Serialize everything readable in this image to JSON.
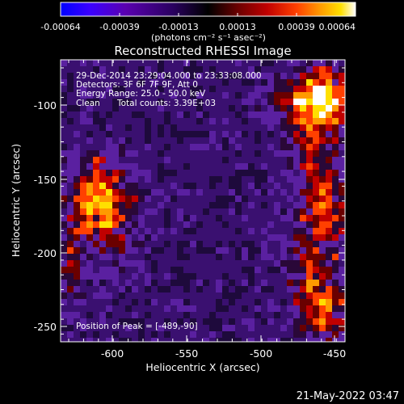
{
  "colorbar": {
    "ticks": [
      "-0.00064",
      "-0.00039",
      "-0.00013",
      "0.00013",
      "0.00039",
      "0.00064"
    ],
    "unit_label": "(photons cm⁻² s⁻¹ asec⁻²)",
    "colormap": [
      "#0000ff",
      "#3b00ff",
      "#5a00b0",
      "#2a0060",
      "#000000",
      "#6a0000",
      "#c00000",
      "#ff4000",
      "#ff9a00",
      "#ffe000",
      "#ffffff"
    ]
  },
  "image": {
    "title": "Reconstructed RHESSI Image",
    "annotations": {
      "time_range": "29-Dec-2014 23:29:04.000 to 23:33:08.000",
      "detectors": "Detectors: 3F 6F 7F 9F, Att 0",
      "energy": "Energy Range: 25.0 - 50.0 keV",
      "method": "Clean",
      "total_counts": "Total counts: 3.39E+03",
      "peak": "Position of Peak = [-489,-90]"
    },
    "x_axis": {
      "label": "Heliocentric X (arcsec)",
      "ticks": [
        "-600",
        "-550",
        "-500",
        "-450"
      ],
      "range": [
        -635,
        -445
      ]
    },
    "y_axis": {
      "label": "Heliocentric Y (arcsec)",
      "ticks": [
        "-100",
        "-150",
        "-200",
        "-250"
      ],
      "range": [
        -263,
        -72
      ]
    }
  },
  "footer": {
    "date": "21-May-2022 03:47"
  }
}
